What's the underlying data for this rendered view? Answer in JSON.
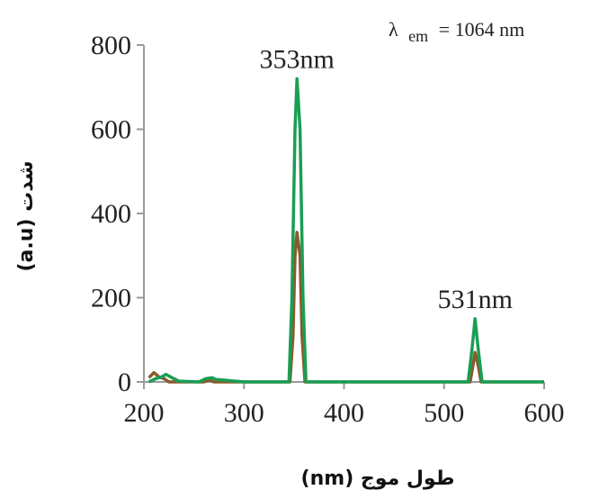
{
  "chart_data": {
    "type": "line",
    "title": "",
    "xlabel": "طول موج (nm)",
    "ylabel": "شدت (a.u)",
    "xlim": [
      200,
      600
    ],
    "ylim": [
      0,
      800
    ],
    "x_ticks": [
      "200",
      "300",
      "400",
      "500",
      "600"
    ],
    "y_ticks": [
      "0",
      "200",
      "400",
      "600",
      "800"
    ],
    "grid": false,
    "annotation": {
      "lambda": "λ",
      "subscript": "em",
      "value": "= 1064 nm"
    },
    "peak_labels": [
      {
        "text": "353nm",
        "x": 353,
        "y": 720
      },
      {
        "text": "531nm",
        "x": 531,
        "y": 150
      }
    ],
    "series": [
      {
        "color": "#1a9e55",
        "x": [
          205,
          212,
          218,
          222,
          228,
          235,
          255,
          262,
          268,
          272,
          300,
          345,
          348,
          351,
          353,
          356,
          359,
          362,
          370,
          400,
          500,
          524,
          528,
          531,
          534,
          538,
          545,
          600
        ],
        "y": [
          0,
          8,
          12,
          18,
          10,
          2,
          0,
          8,
          10,
          6,
          0,
          0,
          200,
          600,
          720,
          600,
          200,
          0,
          0,
          0,
          0,
          0,
          80,
          150,
          80,
          0,
          0,
          0
        ]
      },
      {
        "color": "#8b5a2b",
        "x": [
          205,
          210,
          215,
          220,
          225,
          260,
          265,
          270,
          300,
          346,
          349,
          351,
          353,
          356,
          358,
          361,
          400,
          500,
          526,
          529,
          531,
          534,
          537,
          600
        ],
        "y": [
          10,
          22,
          12,
          8,
          0,
          0,
          5,
          0,
          0,
          0,
          110,
          300,
          355,
          300,
          110,
          0,
          0,
          0,
          0,
          40,
          70,
          40,
          0,
          0
        ]
      }
    ]
  }
}
